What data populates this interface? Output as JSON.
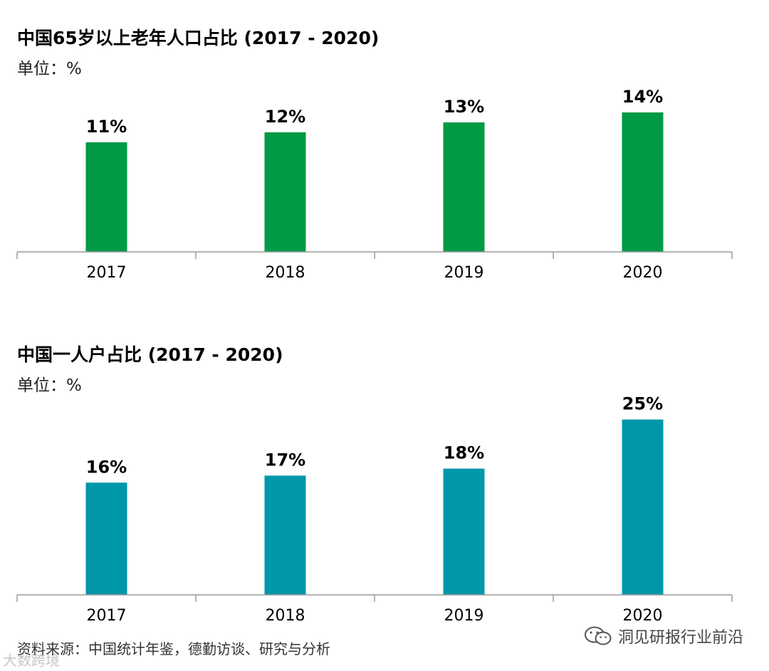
{
  "chart_data": [
    {
      "type": "bar",
      "title": "中国65岁以上老年人口占比 (2017 - 2020)",
      "unit_label": "单位：%",
      "categories": [
        "2017",
        "2018",
        "2019",
        "2020"
      ],
      "values": [
        11,
        12,
        13,
        14
      ],
      "value_labels": [
        "11%",
        "12%",
        "13%",
        "14%"
      ],
      "ylim": [
        0,
        16
      ],
      "xlabel": "",
      "ylabel": "",
      "grid": false,
      "color": "#009a44"
    },
    {
      "type": "bar",
      "title": "中国一人户占比 (2017 - 2020)",
      "unit_label": "单位：%",
      "categories": [
        "2017",
        "2018",
        "2019",
        "2020"
      ],
      "values": [
        16,
        17,
        18,
        25
      ],
      "value_labels": [
        "16%",
        "17%",
        "18%",
        "25%"
      ],
      "ylim": [
        0,
        28
      ],
      "xlabel": "",
      "ylabel": "",
      "grid": false,
      "color": "#0097a9"
    }
  ],
  "footer": {
    "source": "资料来源：中国统计年鉴，德勤访谈、研究与分析",
    "wechat_account": "洞见研报行业前沿",
    "watermark": "大数跨境"
  }
}
